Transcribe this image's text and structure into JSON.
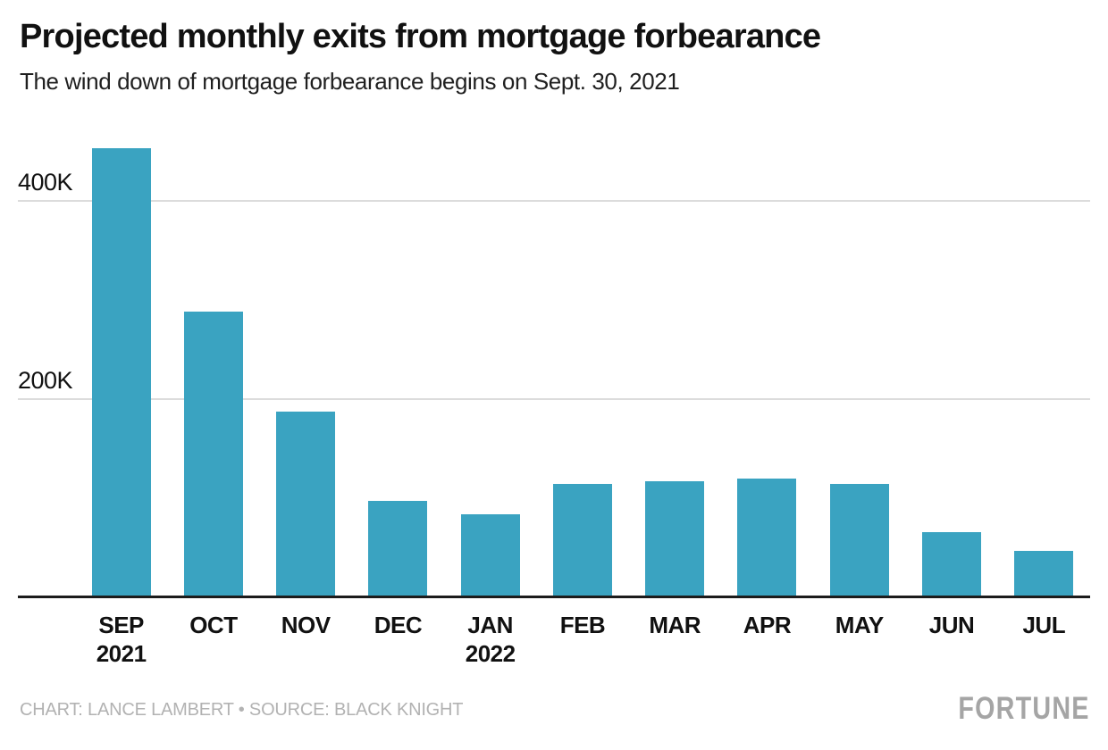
{
  "header": {
    "title": "Projected monthly exits from mortgage forbearance",
    "subtitle": "The wind down of mortgage forbearance begins on Sept. 30, 2021"
  },
  "footer": {
    "credit": "CHART: LANCE LAMBERT • SOURCE: BLACK KNIGHT",
    "brand": "FORTUNE"
  },
  "colors": {
    "bar": "#3AA3C1",
    "grid": "#DCDCDC",
    "axis": "#1C1C1C",
    "text": "#111111",
    "muted_text": "#B2B2B2",
    "brand_text": "#A5A5A5"
  },
  "chart_data": {
    "type": "bar",
    "title": "Projected monthly exits from mortgage forbearance",
    "subtitle": "The wind down of mortgage forbearance begins on Sept. 30, 2021",
    "categories": [
      {
        "label": "SEP",
        "sublabel": "2021"
      },
      {
        "label": "OCT",
        "sublabel": ""
      },
      {
        "label": "NOV",
        "sublabel": ""
      },
      {
        "label": "DEC",
        "sublabel": ""
      },
      {
        "label": "JAN",
        "sublabel": "2022"
      },
      {
        "label": "FEB",
        "sublabel": ""
      },
      {
        "label": "MAR",
        "sublabel": ""
      },
      {
        "label": "APR",
        "sublabel": ""
      },
      {
        "label": "MAY",
        "sublabel": ""
      },
      {
        "label": "JUN",
        "sublabel": ""
      },
      {
        "label": "JUL",
        "sublabel": ""
      }
    ],
    "values": [
      452000,
      287000,
      186000,
      96000,
      83000,
      113000,
      116000,
      119000,
      113000,
      65000,
      46000
    ],
    "xlabel": "",
    "ylabel": "",
    "y_ticks": [
      {
        "label": "400K",
        "value": 400000
      },
      {
        "label": "200K",
        "value": 200000
      }
    ],
    "ylim": [
      0,
      468000
    ],
    "grid": true,
    "legend": "none"
  }
}
